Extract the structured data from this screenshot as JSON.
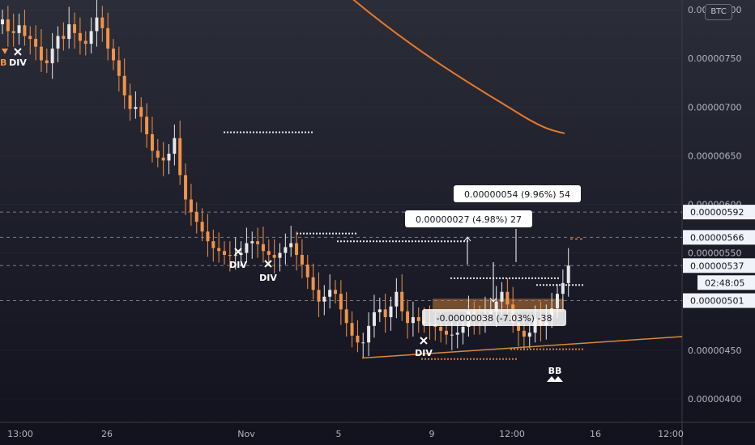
{
  "currency_button": "BTC",
  "colors": {
    "up": "#e6e7ea",
    "down": "#f0934a",
    "ma": "#e9792a",
    "trend": "#d98a3a",
    "box": "#ffffff",
    "zone": "#c07a3a"
  },
  "countdown": "02:48:05",
  "labels": {
    "div": "DIV",
    "bb": "BB"
  },
  "measure_boxes": [
    {
      "text": "0.00000054 (9.96%) 54"
    },
    {
      "text": "0.00000027 (4.98%) 27"
    },
    {
      "text": "-0.00000038 (-7.03%) -38"
    }
  ],
  "chart_data": {
    "type": "candlestick",
    "y_axis": {
      "range": [
        3.8e-06,
        8.1e-06
      ],
      "ticks": [
        "0.00000800",
        "0.00000750",
        "0.00000700",
        "0.00000650",
        "0.00000600",
        "0.00000550",
        "0.00000450",
        "0.00000400"
      ]
    },
    "x_axis": {
      "ticks": [
        "13:00",
        "26",
        "Nov",
        "5",
        "9",
        "12:00",
        "16",
        "12:00"
      ]
    },
    "price_tags": [
      {
        "value": 5.92e-06,
        "label": "0.00000592",
        "style": "light"
      },
      {
        "value": 5.66e-06,
        "label": "0.00000566",
        "style": "light"
      },
      {
        "value": 5.37e-06,
        "label": "0.00000537",
        "style": "light"
      },
      {
        "value": 5.01e-06,
        "label": "0.00000501",
        "style": "light"
      }
    ],
    "closes": [
      7.9e-06,
      7.78e-06,
      7.76e-06,
      7.84e-06,
      7.73e-06,
      7.7e-06,
      7.62e-06,
      7.48e-06,
      7.45e-06,
      7.6e-06,
      7.73e-06,
      7.7e-06,
      7.85e-06,
      7.76e-06,
      7.68e-06,
      7.65e-06,
      7.78e-06,
      7.92e-06,
      7.81e-06,
      7.6e-06,
      7.48e-06,
      7.32e-06,
      7.12e-06,
      6.98e-06,
      7e-06,
      6.9e-06,
      6.72e-06,
      6.55e-06,
      6.48e-06,
      6.45e-06,
      6.52e-06,
      6.68e-06,
      6.3e-06,
      6.05e-06,
      5.92e-06,
      5.82e-06,
      5.72e-06,
      5.62e-06,
      5.55e-06,
      5.52e-06,
      5.48e-06,
      5.47e-06,
      5.48e-06,
      5.5e-06,
      5.6e-06,
      5.62e-06,
      5.59e-06,
      5.52e-06,
      5.48e-06,
      5.45e-06,
      5.5e-06,
      5.56e-06,
      5.6e-06,
      5.48e-06,
      5.38e-06,
      5.25e-06,
      5.12e-06,
      5e-06,
      5.05e-06,
      5.12e-06,
      5.08e-06,
      4.92e-06,
      4.78e-06,
      4.65e-06,
      4.58e-06,
      4.58e-06,
      4.75e-06,
      4.89e-06,
      4.92e-06,
      4.84e-06,
      4.95e-06,
      5.1e-06,
      4.9e-06,
      4.78e-06,
      4.84e-06,
      4.8e-06,
      4.78e-06,
      4.77e-06,
      4.74e-06,
      4.7e-06,
      4.66e-06,
      4.66e-06,
      4.68e-06,
      4.74e-06,
      4.9e-06,
      4.82e-06,
      4.8e-06,
      4.87e-06,
      4.9e-06,
      5e-06,
      5.1e-06,
      4.97e-06,
      4.78e-06,
      4.7e-06,
      4.64e-06,
      4.68e-06,
      4.82e-06,
      4.75e-06,
      4.85e-06,
      4.93e-06,
      5.08e-06,
      5.19e-06,
      5.37e-06
    ]
  }
}
